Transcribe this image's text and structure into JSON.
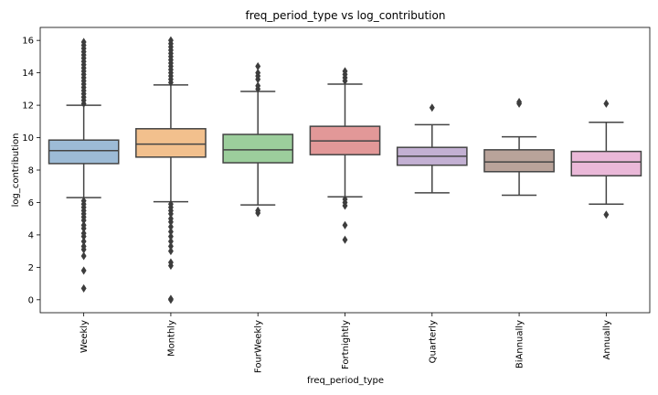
{
  "chart_data": {
    "type": "box",
    "title": "freq_period_type vs log_contribution",
    "xlabel": "freq_period_type",
    "ylabel": "log_contribution",
    "ylim": [
      -0.8,
      16.8
    ],
    "yticks": [
      0,
      2,
      4,
      6,
      8,
      10,
      12,
      14,
      16
    ],
    "grid": false,
    "legend": "none",
    "categories": [
      "Weekly",
      "Monthly",
      "FourWeekly",
      "Fortnightly",
      "Quarterly",
      "BiAnnually",
      "Annually"
    ],
    "boxes": [
      {
        "category": "Weekly",
        "color": "#9dbbd6",
        "q1": 8.4,
        "median": 9.2,
        "q3": 9.85,
        "whisker_low": 6.3,
        "whisker_high": 12.0,
        "outliers": [
          0.7,
          1.8,
          2.7,
          3.1,
          3.3,
          3.6,
          3.9,
          4.1,
          4.4,
          4.6,
          4.9,
          5.1,
          5.3,
          5.5,
          5.7,
          5.9,
          6.1,
          12.1,
          12.3,
          12.5,
          12.7,
          12.9,
          13.1,
          13.3,
          13.5,
          13.7,
          13.9,
          14.1,
          14.3,
          14.5,
          14.7,
          14.9,
          15.1,
          15.3,
          15.5,
          15.7,
          15.9
        ]
      },
      {
        "category": "Monthly",
        "color": "#f2c08d",
        "q1": 8.8,
        "median": 9.6,
        "q3": 10.55,
        "whisker_low": 6.05,
        "whisker_high": 13.25,
        "outliers": [
          0.0,
          0.05,
          2.1,
          2.3,
          3.0,
          3.3,
          3.6,
          3.9,
          4.2,
          4.5,
          4.8,
          5.0,
          5.3,
          5.5,
          5.7,
          5.9,
          13.4,
          13.6,
          13.8,
          14.0,
          14.2,
          14.4,
          14.6,
          14.8,
          15.0,
          15.2,
          15.4,
          15.6,
          15.8,
          16.0
        ]
      },
      {
        "category": "FourWeekly",
        "color": "#9cce9c",
        "q1": 8.45,
        "median": 9.25,
        "q3": 10.2,
        "whisker_low": 5.85,
        "whisker_high": 12.85,
        "outliers": [
          5.35,
          5.5,
          13.0,
          13.2,
          13.6,
          13.8,
          14.0,
          14.4
        ]
      },
      {
        "category": "Fortnightly",
        "color": "#e29898",
        "q1": 8.95,
        "median": 9.8,
        "q3": 10.7,
        "whisker_low": 6.35,
        "whisker_high": 13.3,
        "outliers": [
          3.7,
          4.6,
          5.8,
          6.0,
          6.2,
          13.5,
          13.7,
          13.9,
          14.1
        ]
      },
      {
        "category": "Quarterly",
        "color": "#c3b0d3",
        "q1": 8.3,
        "median": 8.85,
        "q3": 9.4,
        "whisker_low": 6.6,
        "whisker_high": 10.8,
        "outliers": [
          11.85
        ]
      },
      {
        "category": "BiAnnually",
        "color": "#b9a39a",
        "q1": 7.9,
        "median": 8.5,
        "q3": 9.25,
        "whisker_low": 6.45,
        "whisker_high": 10.05,
        "outliers": [
          12.1,
          12.2
        ]
      },
      {
        "category": "Annually",
        "color": "#eab8d8",
        "q1": 7.65,
        "median": 8.5,
        "q3": 9.15,
        "whisker_low": 5.9,
        "whisker_high": 10.95,
        "outliers": [
          5.25,
          12.1
        ]
      }
    ]
  }
}
